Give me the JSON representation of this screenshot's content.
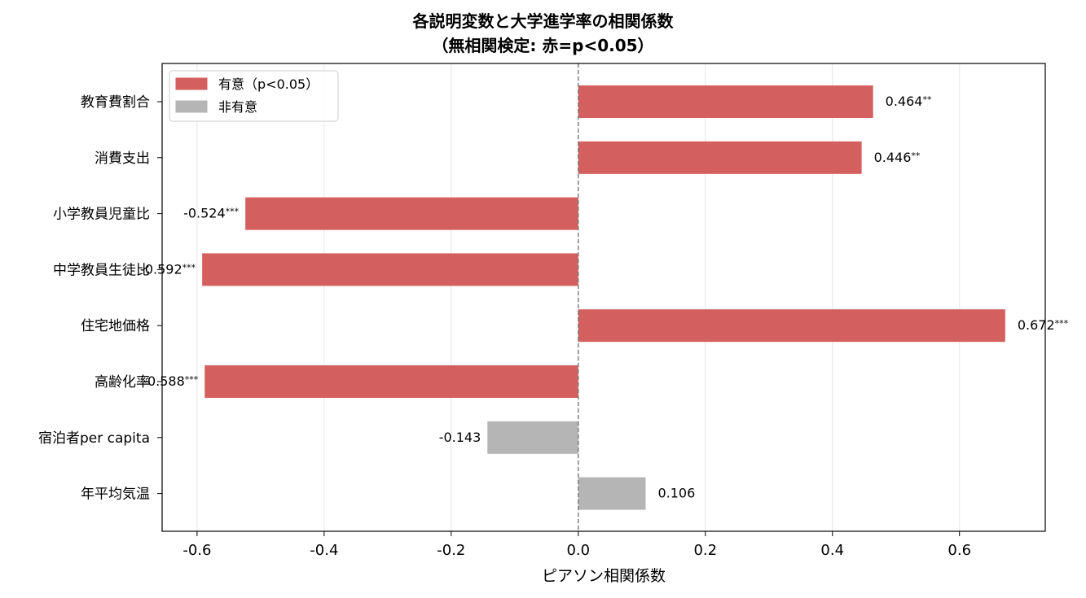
{
  "chart_data": {
    "type": "bar",
    "orientation": "horizontal",
    "title_line1": "各説明変数と大学進学率の相関係数",
    "title_line2": "（無相関検定: 赤=p<0.05）",
    "xlabel": "ピアソン相関係数",
    "ylabel": "",
    "xlim": [
      -0.655,
      0.735
    ],
    "xticks": [
      -0.6,
      -0.4,
      -0.2,
      0.0,
      0.2,
      0.4,
      0.6
    ],
    "xtick_labels": [
      "-0.6",
      "-0.4",
      "-0.2",
      "0.0",
      "0.2",
      "0.4",
      "0.6"
    ],
    "grid": "vertical",
    "legend_position": "top-left",
    "legend": [
      {
        "label": "有意（p<0.05）",
        "color": "#d45f5f"
      },
      {
        "label": "非有意",
        "color": "#b5b5b5"
      }
    ],
    "categories": [
      "教育費割合",
      "消費支出",
      "小学教員児童比",
      "中学教員生徒比",
      "住宅地価格",
      "高齢化率",
      "宿泊者per capita",
      "年平均気温"
    ],
    "values": [
      0.464,
      0.446,
      -0.524,
      -0.592,
      0.672,
      -0.588,
      -0.143,
      0.106
    ],
    "value_labels": [
      "0.464",
      "0.446",
      "-0.524",
      "-0.592",
      "0.672",
      "-0.588",
      "-0.143",
      "0.106"
    ],
    "stars": [
      "**",
      "**",
      "***",
      "***",
      "***",
      "***",
      "",
      ""
    ],
    "significant": [
      true,
      true,
      true,
      true,
      true,
      true,
      false,
      false
    ],
    "colors": {
      "significant": "#d45f5f",
      "nonsignificant": "#b5b5b5",
      "zero_line": "#808080"
    }
  }
}
